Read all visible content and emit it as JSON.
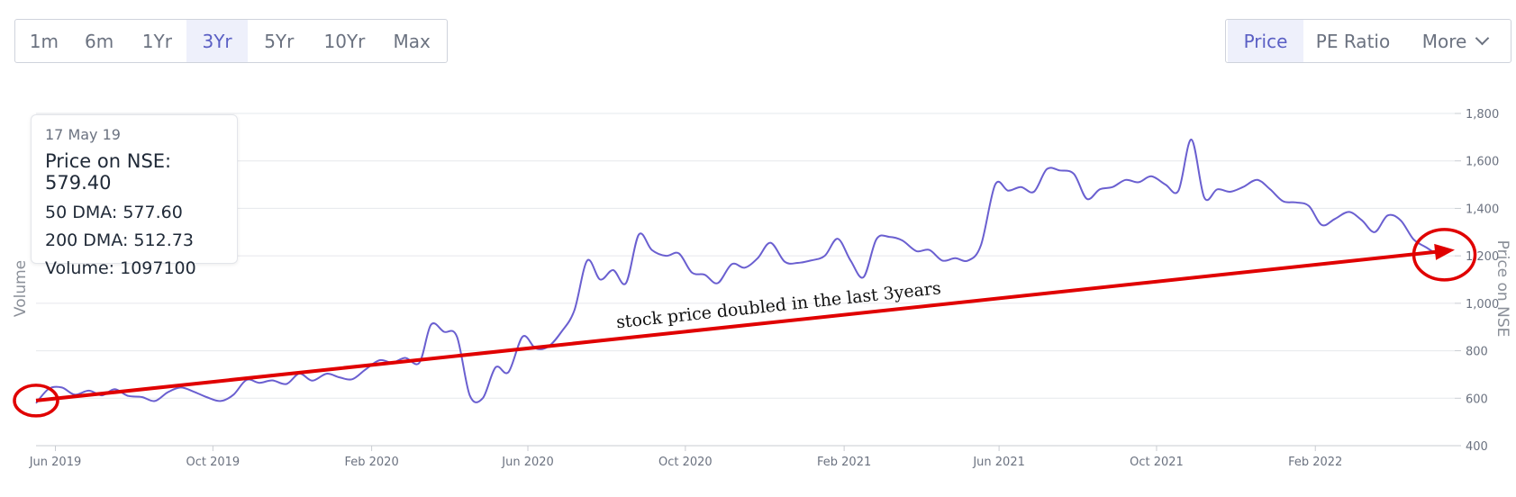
{
  "period_tabs": [
    {
      "label": "1m",
      "active": false
    },
    {
      "label": "6m",
      "active": false
    },
    {
      "label": "1Yr",
      "active": false
    },
    {
      "label": "3Yr",
      "active": true
    },
    {
      "label": "5Yr",
      "active": false
    },
    {
      "label": "10Yr",
      "active": false
    },
    {
      "label": "Max",
      "active": false
    }
  ],
  "metric_tabs": {
    "price": "Price",
    "pe_ratio": "PE Ratio",
    "more": "More",
    "more_icon": "chevron-down-icon"
  },
  "tooltip": {
    "date": "17 May 19",
    "price": "Price on NSE: 579.40",
    "dma50": "50 DMA: 577.60",
    "dma200": "200 DMA: 512.73",
    "volume": "Volume: 1097100"
  },
  "colors": {
    "line": "#6a5fd0",
    "annotation": "#e00000",
    "active_tab_bg": "#eef0fb",
    "active_tab_text": "#5a5fc4"
  },
  "chart_data": {
    "type": "line",
    "title": "",
    "xlabel": "",
    "ylabel_left": "Volume",
    "ylabel_right": "Price on NSE",
    "ylim": [
      400,
      1800
    ],
    "y_ticks": [
      400,
      600,
      800,
      1000,
      1200,
      1400,
      1600,
      1800
    ],
    "y_tick_labels": [
      "400",
      "600",
      "800",
      "1,000",
      "1,200",
      "1,400",
      "1,600",
      "1,800"
    ],
    "xlim": [
      "2019-05-17",
      "2022-05-20"
    ],
    "x_ticks": [
      {
        "date": "2019-06-01",
        "label": "Jun 2019"
      },
      {
        "date": "2019-10-01",
        "label": "Oct 2019"
      },
      {
        "date": "2020-02-01",
        "label": "Feb 2020"
      },
      {
        "date": "2020-06-01",
        "label": "Jun 2020"
      },
      {
        "date": "2020-10-01",
        "label": "Oct 2020"
      },
      {
        "date": "2021-02-01",
        "label": "Feb 2021"
      },
      {
        "date": "2021-06-01",
        "label": "Jun 2021"
      },
      {
        "date": "2021-10-01",
        "label": "Oct 2021"
      },
      {
        "date": "2022-02-01",
        "label": "Feb 2022"
      }
    ],
    "grid": true,
    "series": [
      {
        "points": [
          [
            "2019-05-17",
            579
          ],
          [
            "2019-05-27",
            640
          ],
          [
            "2019-06-06",
            645
          ],
          [
            "2019-06-16",
            615
          ],
          [
            "2019-06-27",
            632
          ],
          [
            "2019-07-07",
            612
          ],
          [
            "2019-07-17",
            638
          ],
          [
            "2019-07-27",
            610
          ],
          [
            "2019-08-07",
            605
          ],
          [
            "2019-08-17",
            588
          ],
          [
            "2019-08-27",
            625
          ],
          [
            "2019-09-06",
            645
          ],
          [
            "2019-09-16",
            628
          ],
          [
            "2019-09-26",
            605
          ],
          [
            "2019-10-07",
            588
          ],
          [
            "2019-10-17",
            615
          ],
          [
            "2019-10-27",
            677
          ],
          [
            "2019-11-06",
            665
          ],
          [
            "2019-11-16",
            675
          ],
          [
            "2019-11-27",
            660
          ],
          [
            "2019-12-07",
            704
          ],
          [
            "2019-12-17",
            674
          ],
          [
            "2019-12-28",
            703
          ],
          [
            "2020-01-07",
            688
          ],
          [
            "2020-01-17",
            680
          ],
          [
            "2020-01-27",
            720
          ],
          [
            "2020-02-07",
            760
          ],
          [
            "2020-02-17",
            750
          ],
          [
            "2020-02-27",
            770
          ],
          [
            "2020-03-09",
            750
          ],
          [
            "2020-03-18",
            910
          ],
          [
            "2020-03-28",
            880
          ],
          [
            "2020-04-07",
            860
          ],
          [
            "2020-04-17",
            612
          ],
          [
            "2020-04-27",
            600
          ],
          [
            "2020-05-07",
            730
          ],
          [
            "2020-05-17",
            710
          ],
          [
            "2020-05-28",
            860
          ],
          [
            "2020-06-07",
            810
          ],
          [
            "2020-06-17",
            818
          ],
          [
            "2020-06-27",
            880
          ],
          [
            "2020-07-07",
            970
          ],
          [
            "2020-07-17",
            1180
          ],
          [
            "2020-07-27",
            1100
          ],
          [
            "2020-08-06",
            1140
          ],
          [
            "2020-08-16",
            1085
          ],
          [
            "2020-08-26",
            1290
          ],
          [
            "2020-09-05",
            1225
          ],
          [
            "2020-09-16",
            1200
          ],
          [
            "2020-09-26",
            1210
          ],
          [
            "2020-10-06",
            1130
          ],
          [
            "2020-10-16",
            1120
          ],
          [
            "2020-10-26",
            1085
          ],
          [
            "2020-11-06",
            1165
          ],
          [
            "2020-11-16",
            1150
          ],
          [
            "2020-11-26",
            1190
          ],
          [
            "2020-12-06",
            1255
          ],
          [
            "2020-12-17",
            1175
          ],
          [
            "2020-12-27",
            1170
          ],
          [
            "2021-01-06",
            1180
          ],
          [
            "2021-01-17",
            1200
          ],
          [
            "2021-01-27",
            1272
          ],
          [
            "2021-02-06",
            1180
          ],
          [
            "2021-02-16",
            1110
          ],
          [
            "2021-02-26",
            1270
          ],
          [
            "2021-03-08",
            1280
          ],
          [
            "2021-03-18",
            1265
          ],
          [
            "2021-03-29",
            1220
          ],
          [
            "2021-04-08",
            1225
          ],
          [
            "2021-04-18",
            1180
          ],
          [
            "2021-04-28",
            1190
          ],
          [
            "2021-05-08",
            1180
          ],
          [
            "2021-05-18",
            1245
          ],
          [
            "2021-05-29",
            1500
          ],
          [
            "2021-06-08",
            1475
          ],
          [
            "2021-06-18",
            1490
          ],
          [
            "2021-06-28",
            1470
          ],
          [
            "2021-07-08",
            1565
          ],
          [
            "2021-07-18",
            1560
          ],
          [
            "2021-07-29",
            1545
          ],
          [
            "2021-08-08",
            1440
          ],
          [
            "2021-08-18",
            1480
          ],
          [
            "2021-08-28",
            1490
          ],
          [
            "2021-09-07",
            1520
          ],
          [
            "2021-09-17",
            1510
          ],
          [
            "2021-09-27",
            1535
          ],
          [
            "2021-10-08",
            1500
          ],
          [
            "2021-10-18",
            1475
          ],
          [
            "2021-10-28",
            1690
          ],
          [
            "2021-11-07",
            1445
          ],
          [
            "2021-11-17",
            1480
          ],
          [
            "2021-11-27",
            1470
          ],
          [
            "2021-12-07",
            1490
          ],
          [
            "2021-12-18",
            1520
          ],
          [
            "2021-12-28",
            1480
          ],
          [
            "2022-01-07",
            1430
          ],
          [
            "2022-01-17",
            1425
          ],
          [
            "2022-01-27",
            1410
          ],
          [
            "2022-02-06",
            1330
          ],
          [
            "2022-02-16",
            1355
          ],
          [
            "2022-02-27",
            1385
          ],
          [
            "2022-03-09",
            1350
          ],
          [
            "2022-03-19",
            1300
          ],
          [
            "2022-03-29",
            1370
          ],
          [
            "2022-04-08",
            1350
          ],
          [
            "2022-04-18",
            1270
          ],
          [
            "2022-04-28",
            1235
          ],
          [
            "2022-05-08",
            1200
          ]
        ]
      }
    ],
    "annotation": {
      "text": "stock price doubled in the last 3years",
      "arrow_from": [
        "2019-05-17",
        590
      ],
      "arrow_to": [
        "2022-05-20",
        1225
      ],
      "circles": [
        [
          "2019-05-17",
          590
        ],
        [
          "2022-05-12",
          1205
        ]
      ]
    }
  }
}
